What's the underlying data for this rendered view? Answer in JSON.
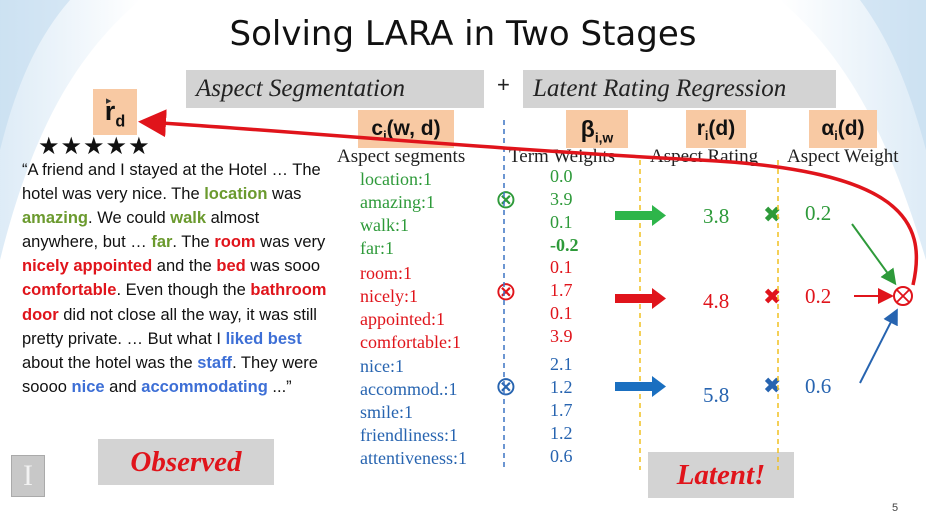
{
  "slide": {
    "title": "Solving LARA in Two Stages",
    "stage1": "Aspect Segmentation",
    "plus": "+",
    "stage2": "Latent Rating Regression",
    "page_number": "5"
  },
  "labels": {
    "rd_main": "r",
    "rd_sub": "d",
    "ci_main": "c",
    "ci_sub": "i",
    "ci_rest": "(w, d)",
    "beta_main": "β",
    "beta_sub": "i,w",
    "ri_main": "r",
    "ri_sub": "i",
    "ri_rest": "(d)",
    "alpha_main": "α",
    "alpha_sub": "i",
    "alpha_rest": "(d)"
  },
  "columns": {
    "segments": "Aspect segments",
    "weights": "Term Weights",
    "rating": "Aspect Rating",
    "aspect_weight": "Aspect Weight"
  },
  "stars": "★★★★★",
  "review": {
    "p1": "“A friend and I stayed at the Hotel … The hotel was very nice. The ",
    "location": "location",
    "p2": " was ",
    "amazing": "amazing",
    "p3": ". We could ",
    "walk": "walk",
    "p4": " almost anywhere, but … ",
    "far": "far",
    "p5": ". The ",
    "room": "room",
    "p6": " was very ",
    "nicely_appointed": "nicely appointed",
    "p7": " and the ",
    "bed": "bed",
    "p8": " was sooo ",
    "comfortable": "comfortable",
    "p9": ". Even though the ",
    "bathroom_door": "bathroom door",
    "p10": " did not close all the way, it was still pretty private. … But what I ",
    "liked_best": "liked best",
    "p11": " about the hotel was the ",
    "staff": "staff",
    "p12": ".  They were soooo ",
    "nice": "nice",
    "p13": " and ",
    "accommodating": "accommodating",
    "p14": " ...”"
  },
  "groups": [
    {
      "color": "#2e9a3a",
      "segments": [
        "location:1",
        "amazing:1",
        "walk:1",
        "far:1"
      ],
      "weights": [
        "0.0",
        "3.9",
        "0.1",
        "-0.2"
      ],
      "rating": "3.8",
      "aspect_weight": "0.2"
    },
    {
      "color": "#e0141b",
      "segments": [
        "room:1",
        "nicely:1",
        "appointed:1",
        "comfortable:1"
      ],
      "weights": [
        "0.1",
        "1.7",
        "0.1",
        "3.9"
      ],
      "rating": "4.8",
      "aspect_weight": "0.2"
    },
    {
      "color": "#2764b0",
      "segments": [
        "nice:1",
        "accommod.:1",
        "smile:1",
        "friendliness:1",
        "attentiveness:1"
      ],
      "weights": [
        "2.1",
        "1.2",
        "1.7",
        "1.2",
        "0.6"
      ],
      "rating": "5.8",
      "aspect_weight": "0.6"
    }
  ],
  "symbols": {
    "otimes": "⊗",
    "times": "✖"
  },
  "observed": "Observed",
  "latent": "Latent!"
}
